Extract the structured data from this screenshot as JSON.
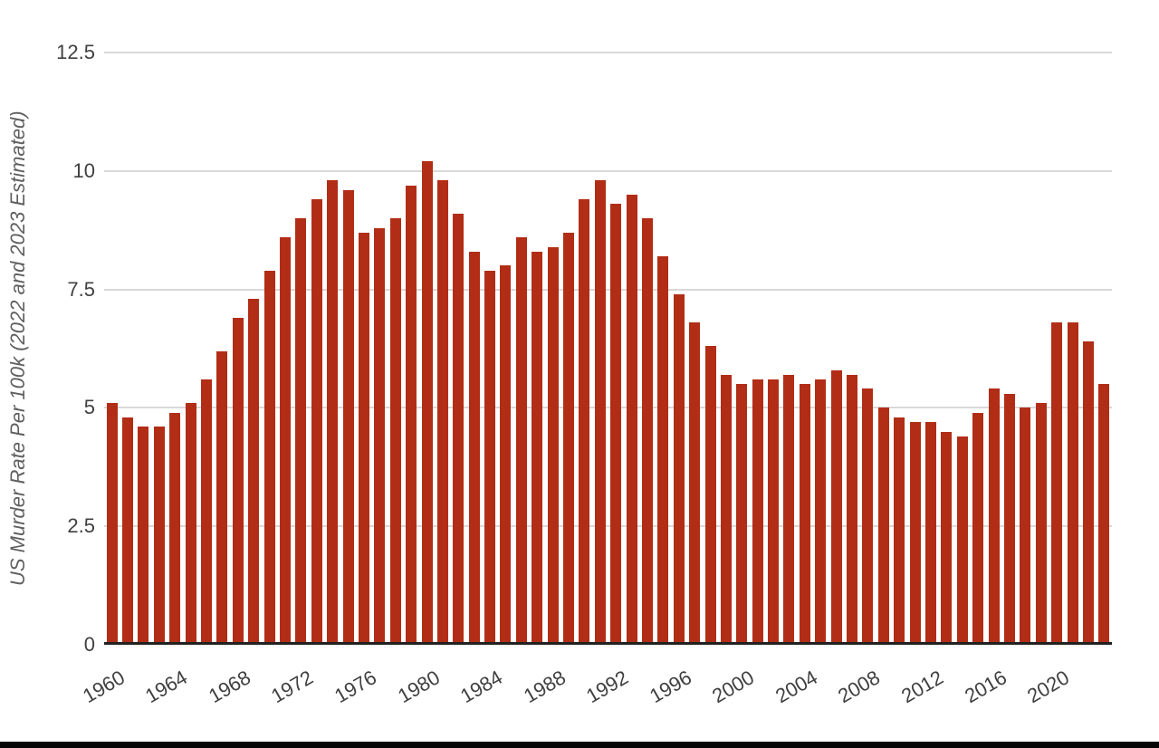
{
  "page": {
    "background": "#ffffff"
  },
  "colors": {
    "bar": "#b22d16",
    "gridline": "#d9d9d9",
    "axis_baseline": "#212121",
    "tick_label": "#404040",
    "axis_title": "#5f5f5f",
    "bottom_edge": "#060606"
  },
  "chart_data": {
    "type": "bar",
    "title": "",
    "xlabel": "",
    "ylabel": "US Murder Rate Per 100k (2022 and 2023 Estimated)",
    "legend_position": "none",
    "grid": true,
    "ylim": [
      0,
      12.5
    ],
    "y_ticks": [
      0,
      2.5,
      5,
      7.5,
      10,
      12.5
    ],
    "y_tick_labels": [
      "0",
      "2.5",
      "5",
      "7.5",
      "10",
      "12.5"
    ],
    "x_tick_labels": [
      "1960",
      "1964",
      "1968",
      "1972",
      "1976",
      "1980",
      "1984",
      "1988",
      "1992",
      "1996",
      "2000",
      "2004",
      "2008",
      "2012",
      "2016",
      "2020"
    ],
    "x": [
      1960,
      1961,
      1962,
      1963,
      1964,
      1965,
      1966,
      1967,
      1968,
      1969,
      1970,
      1971,
      1972,
      1973,
      1974,
      1975,
      1976,
      1977,
      1978,
      1979,
      1980,
      1981,
      1982,
      1983,
      1984,
      1985,
      1986,
      1987,
      1988,
      1989,
      1990,
      1991,
      1992,
      1993,
      1994,
      1995,
      1996,
      1997,
      1998,
      1999,
      2000,
      2001,
      2002,
      2003,
      2004,
      2005,
      2006,
      2007,
      2008,
      2009,
      2010,
      2011,
      2012,
      2013,
      2014,
      2015,
      2016,
      2017,
      2018,
      2019,
      2020,
      2021,
      2022,
      2023
    ],
    "values": [
      5.1,
      4.8,
      4.6,
      4.6,
      4.9,
      5.1,
      5.6,
      6.2,
      6.9,
      7.3,
      7.9,
      8.6,
      9.0,
      9.4,
      9.8,
      9.6,
      8.7,
      8.8,
      9.0,
      9.7,
      10.2,
      9.8,
      9.1,
      8.3,
      7.9,
      8.0,
      8.6,
      8.3,
      8.4,
      8.7,
      9.4,
      9.8,
      9.3,
      9.5,
      9.0,
      8.2,
      7.4,
      6.8,
      6.3,
      5.7,
      5.5,
      5.6,
      5.6,
      5.7,
      5.5,
      5.6,
      5.8,
      5.7,
      5.4,
      5.0,
      4.8,
      4.7,
      4.7,
      4.5,
      4.4,
      4.9,
      5.4,
      5.3,
      5.0,
      5.1,
      6.8,
      6.8,
      6.4,
      5.5
    ],
    "series_name": "US Murder Rate Per 100k"
  }
}
